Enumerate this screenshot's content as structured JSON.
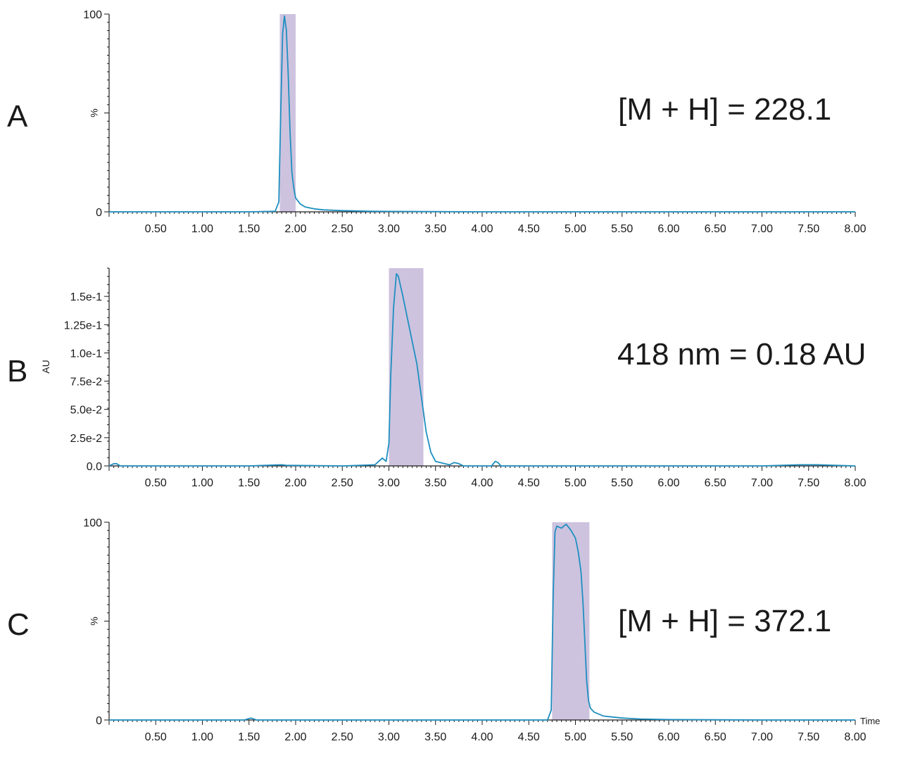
{
  "colors": {
    "trace": "#1f8fc0",
    "highlight": "#cdc3df",
    "axis": "#1a1a1a"
  },
  "chart_data": [
    {
      "type": "line",
      "panel_label": "A",
      "annotation": "[M + H] = 228.1",
      "ylabel": "%",
      "xlabel": "",
      "xlim": [
        0,
        8.0
      ],
      "ylim": [
        0,
        100
      ],
      "x_ticks": [
        "0.50",
        "1.00",
        "1.50",
        "2.00",
        "2.50",
        "3.00",
        "3.50",
        "4.00",
        "4.50",
        "5.00",
        "5.50",
        "6.00",
        "6.50",
        "7.00",
        "7.50",
        "8.00"
      ],
      "y_ticks": [
        {
          "value": 0,
          "label": "0"
        },
        {
          "value": 50,
          "label": "%"
        },
        {
          "value": 100,
          "label": "100"
        }
      ],
      "highlight_range": [
        1.83,
        2.0
      ],
      "series": [
        {
          "x": [
            0,
            0.5,
            1.0,
            1.5,
            1.78,
            1.82,
            1.84,
            1.86,
            1.88,
            1.9,
            1.92,
            1.94,
            1.96,
            1.98,
            2.0,
            2.05,
            2.1,
            2.2,
            2.3,
            2.5,
            2.8,
            3.0,
            3.5,
            4.0,
            5.0,
            6.0,
            7.0,
            8.0
          ],
          "y": [
            0,
            0,
            0,
            0,
            0.3,
            5,
            50,
            90,
            99,
            92,
            70,
            40,
            20,
            12,
            7,
            4,
            2.5,
            1.5,
            1,
            0.6,
            0.3,
            0.2,
            0.1,
            0,
            0,
            0,
            0,
            0
          ]
        }
      ]
    },
    {
      "type": "line",
      "panel_label": "B",
      "annotation": "418 nm = 0.18 AU",
      "ylabel": "AU",
      "xlabel": "",
      "xlim": [
        0,
        8.0
      ],
      "ylim": [
        0,
        0.175
      ],
      "x_ticks": [
        "0.50",
        "1.00",
        "1.50",
        "2.00",
        "2.50",
        "3.00",
        "3.50",
        "4.00",
        "4.50",
        "5.00",
        "5.50",
        "6.00",
        "6.50",
        "7.00",
        "7.50",
        "8.00"
      ],
      "y_ticks": [
        {
          "value": 0,
          "label": "0.0"
        },
        {
          "value": 0.025,
          "label": "2.5e-2"
        },
        {
          "value": 0.05,
          "label": "5.0e-2"
        },
        {
          "value": 0.075,
          "label": "7.5e-2"
        },
        {
          "value": 0.1,
          "label": "1.0e-1"
        },
        {
          "value": 0.125,
          "label": "1.25e-1"
        },
        {
          "value": 0.15,
          "label": "1.5e-1"
        }
      ],
      "highlight_range": [
        3.0,
        3.37
      ],
      "series": [
        {
          "x": [
            0,
            0.05,
            0.08,
            0.12,
            0.5,
            1.0,
            1.5,
            1.85,
            1.9,
            2.5,
            2.85,
            2.93,
            2.97,
            3.0,
            3.02,
            3.05,
            3.08,
            3.1,
            3.15,
            3.2,
            3.3,
            3.35,
            3.4,
            3.45,
            3.5,
            3.65,
            3.7,
            3.75,
            3.8,
            4.1,
            4.14,
            4.17,
            4.2,
            4.5,
            5.0,
            6.0,
            7.0,
            7.4,
            7.6,
            8.0
          ],
          "y": [
            0,
            0.002,
            0.002,
            0,
            0,
            0,
            0,
            0.001,
            0.0005,
            0,
            0.001,
            0.007,
            0.004,
            0.02,
            0.08,
            0.14,
            0.17,
            0.168,
            0.15,
            0.13,
            0.09,
            0.06,
            0.03,
            0.012,
            0.004,
            0.001,
            0.003,
            0.002,
            0,
            0,
            0.004,
            0.003,
            0,
            0,
            0,
            0,
            0,
            0.001,
            0.001,
            0
          ]
        }
      ]
    },
    {
      "type": "line",
      "panel_label": "C",
      "annotation": "[M + H] = 372.1",
      "ylabel": "%",
      "xlabel": "Time",
      "xlim": [
        0,
        8.0
      ],
      "ylim": [
        0,
        100
      ],
      "x_ticks": [
        "0.50",
        "1.00",
        "1.50",
        "2.00",
        "2.50",
        "3.00",
        "3.50",
        "4.00",
        "4.50",
        "5.00",
        "5.50",
        "6.00",
        "6.50",
        "7.00",
        "7.50",
        "8.00"
      ],
      "y_ticks": [
        {
          "value": 0,
          "label": "0"
        },
        {
          "value": 50,
          "label": "%"
        },
        {
          "value": 100,
          "label": "100"
        }
      ],
      "highlight_range": [
        4.75,
        5.15
      ],
      "series": [
        {
          "x": [
            0,
            0.5,
            1.0,
            1.45,
            1.52,
            1.58,
            2.0,
            3.0,
            4.0,
            4.5,
            4.7,
            4.74,
            4.76,
            4.78,
            4.8,
            4.85,
            4.9,
            4.95,
            5.0,
            5.03,
            5.06,
            5.08,
            5.1,
            5.12,
            5.14,
            5.16,
            5.2,
            5.3,
            5.4,
            5.5,
            5.7,
            6.0,
            7.0,
            8.0
          ],
          "y": [
            0,
            0,
            0,
            0,
            1,
            0,
            0,
            0,
            0,
            0,
            0,
            5,
            60,
            95,
            98,
            97,
            99,
            96,
            92,
            85,
            75,
            60,
            40,
            20,
            10,
            6,
            4,
            2,
            1.5,
            1,
            0.5,
            0.2,
            0,
            0
          ]
        }
      ]
    }
  ]
}
